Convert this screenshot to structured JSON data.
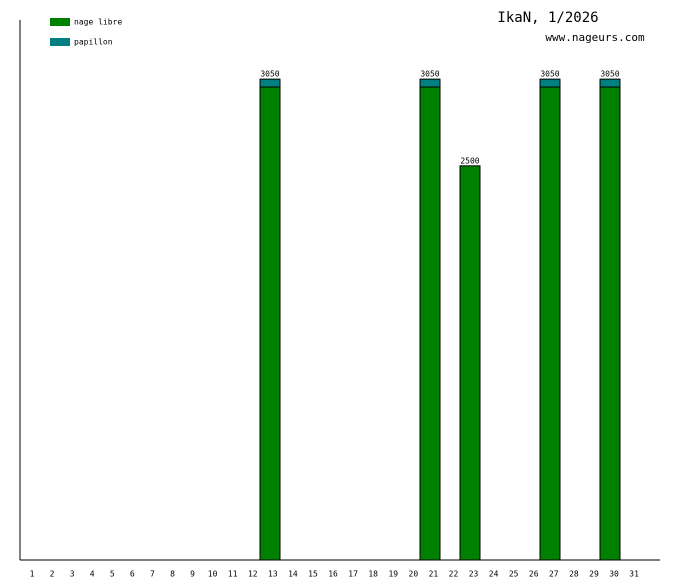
{
  "chart_data": {
    "type": "stacked_bar",
    "title": "IkaN, 1/2026",
    "subtitle": "www.nageurs.com",
    "categories": [
      "1",
      "2",
      "3",
      "4",
      "5",
      "6",
      "7",
      "8",
      "9",
      "10",
      "11",
      "12",
      "13",
      "14",
      "15",
      "16",
      "17",
      "18",
      "19",
      "20",
      "21",
      "22",
      "23",
      "24",
      "25",
      "26",
      "27",
      "28",
      "29",
      "30",
      "31"
    ],
    "series": [
      {
        "name": "nage libre",
        "color": "#008000",
        "values": [
          null,
          null,
          null,
          null,
          null,
          null,
          null,
          null,
          null,
          null,
          null,
          null,
          3000,
          null,
          null,
          null,
          null,
          null,
          null,
          null,
          3000,
          null,
          2500,
          null,
          null,
          null,
          3000,
          null,
          null,
          3000,
          null
        ]
      },
      {
        "name": "papillon",
        "color": "#008080",
        "values": [
          null,
          null,
          null,
          null,
          null,
          null,
          null,
          null,
          null,
          null,
          null,
          null,
          50,
          null,
          null,
          null,
          null,
          null,
          null,
          null,
          50,
          null,
          null,
          null,
          null,
          null,
          50,
          null,
          null,
          50,
          null
        ]
      }
    ],
    "total_labels": [
      null,
      null,
      null,
      null,
      null,
      null,
      null,
      null,
      null,
      null,
      null,
      null,
      "3050",
      null,
      null,
      null,
      null,
      null,
      null,
      null,
      "3050",
      null,
      "2500",
      null,
      null,
      null,
      "3050",
      null,
      null,
      "3050",
      null
    ],
    "ylim": [
      0,
      3425
    ],
    "legend": "top-left"
  }
}
